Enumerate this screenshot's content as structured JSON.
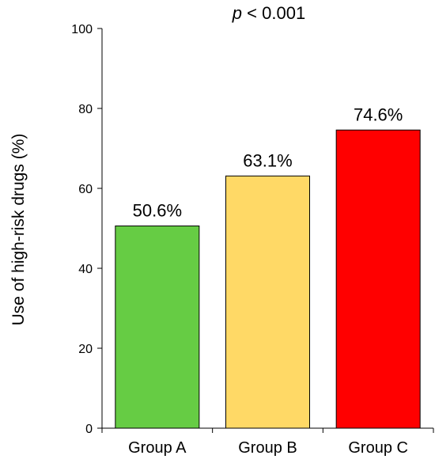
{
  "chart_data": {
    "type": "bar",
    "categories": [
      "Group A",
      "Group B",
      "Group C"
    ],
    "values": [
      50.6,
      63.1,
      74.6
    ],
    "data_labels": [
      "50.6%",
      "63.1%",
      "74.6%"
    ],
    "colors": [
      "#66cc44",
      "#ffd966",
      "#ff0000"
    ],
    "bar_edge_color": "#000000",
    "ylabel": "Use of high-risk drugs (%)",
    "xlabel": "",
    "ylim": [
      0,
      100
    ],
    "yticks": [
      0,
      20,
      40,
      60,
      80,
      100
    ],
    "ytick_labels": [
      "0",
      "20",
      "40",
      "60",
      "80",
      "100"
    ],
    "annotation": {
      "italic": "p",
      "rest": " < 0.001"
    },
    "grid": false,
    "legend": "none"
  }
}
